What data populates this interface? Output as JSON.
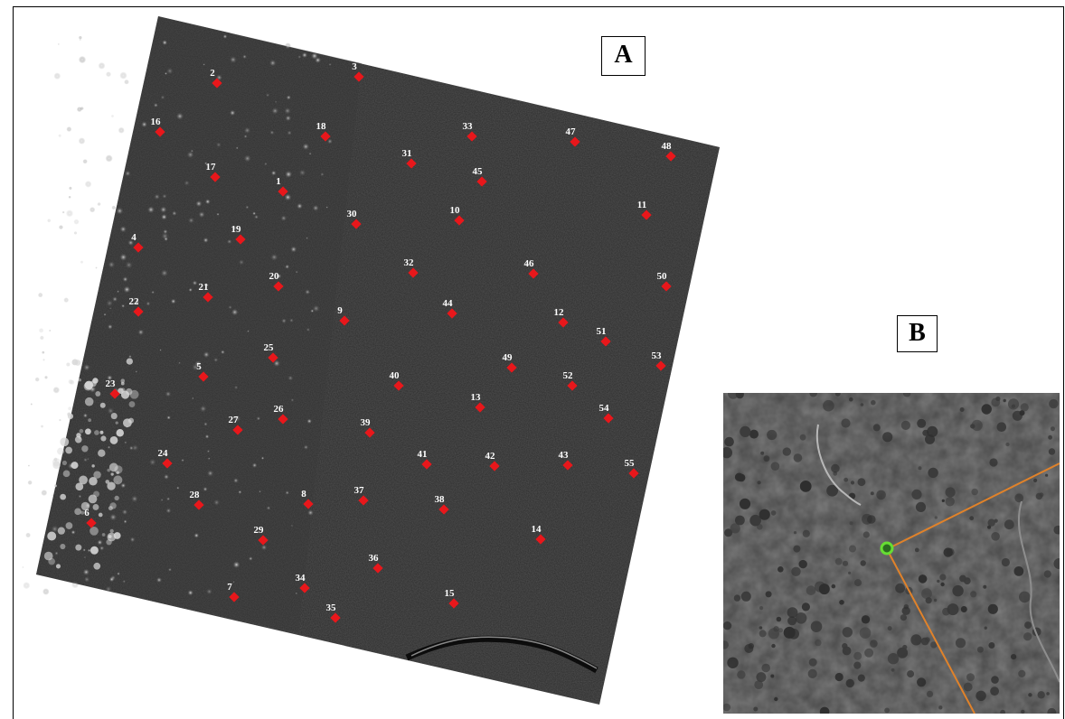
{
  "panels": {
    "a_label": "A",
    "b_label": "B"
  },
  "colors": {
    "marker": "#e8171b",
    "label_text": "#ffffff",
    "imagery_dark": "#2c2c2c",
    "highlight_ring": "#66dd33",
    "boundary_line": "#e0822a"
  },
  "points": [
    {
      "id": "1"
    },
    {
      "id": "2"
    },
    {
      "id": "3"
    },
    {
      "id": "4"
    },
    {
      "id": "5"
    },
    {
      "id": "6"
    },
    {
      "id": "7"
    },
    {
      "id": "8"
    },
    {
      "id": "9"
    },
    {
      "id": "10"
    },
    {
      "id": "11"
    },
    {
      "id": "12"
    },
    {
      "id": "13"
    },
    {
      "id": "14"
    },
    {
      "id": "15"
    },
    {
      "id": "16"
    },
    {
      "id": "17"
    },
    {
      "id": "18"
    },
    {
      "id": "19"
    },
    {
      "id": "20"
    },
    {
      "id": "21"
    },
    {
      "id": "22"
    },
    {
      "id": "23"
    },
    {
      "id": "24"
    },
    {
      "id": "25"
    },
    {
      "id": "26"
    },
    {
      "id": "27"
    },
    {
      "id": "28"
    },
    {
      "id": "29"
    },
    {
      "id": "30"
    },
    {
      "id": "31"
    },
    {
      "id": "32"
    },
    {
      "id": "33"
    },
    {
      "id": "34"
    },
    {
      "id": "35"
    },
    {
      "id": "36"
    },
    {
      "id": "37"
    },
    {
      "id": "38"
    },
    {
      "id": "39"
    },
    {
      "id": "40"
    },
    {
      "id": "41"
    },
    {
      "id": "42"
    },
    {
      "id": "43"
    },
    {
      "id": "44"
    },
    {
      "id": "45"
    },
    {
      "id": "46"
    },
    {
      "id": "47"
    },
    {
      "id": "48"
    },
    {
      "id": "49"
    },
    {
      "id": "50"
    },
    {
      "id": "51"
    },
    {
      "id": "52"
    },
    {
      "id": "53"
    },
    {
      "id": "54"
    },
    {
      "id": "55"
    }
  ]
}
